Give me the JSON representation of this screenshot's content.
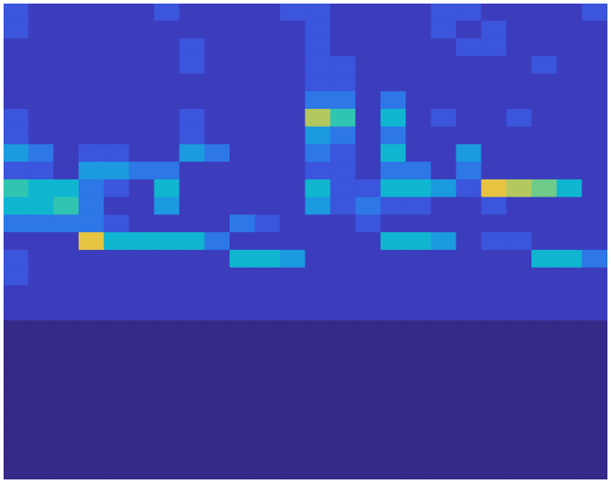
{
  "chart_data": {
    "type": "heatmap",
    "tick_labels": false,
    "xlim": [
      0,
      24
    ],
    "ylim": [
      0,
      27
    ],
    "zlim": [
      0,
      10
    ],
    "cells": [
      [
        2,
        1,
        1,
        1,
        1,
        1,
        2,
        1,
        1,
        1,
        1,
        2,
        2,
        1,
        1,
        1,
        1,
        2,
        2,
        1,
        1,
        1,
        1,
        2
      ],
      [
        2,
        1,
        1,
        1,
        1,
        1,
        1,
        1,
        1,
        1,
        1,
        1,
        2,
        1,
        1,
        1,
        1,
        2,
        1,
        2,
        1,
        1,
        1,
        1
      ],
      [
        1,
        1,
        1,
        1,
        1,
        1,
        1,
        2,
        1,
        1,
        1,
        1,
        2,
        1,
        1,
        1,
        1,
        1,
        2,
        2,
        1,
        1,
        1,
        1
      ],
      [
        1,
        1,
        1,
        1,
        1,
        1,
        1,
        2,
        1,
        1,
        1,
        1,
        2,
        2,
        1,
        1,
        1,
        1,
        1,
        1,
        1,
        2,
        1,
        1
      ],
      [
        1,
        1,
        1,
        1,
        1,
        1,
        1,
        1,
        1,
        1,
        1,
        1,
        2,
        2,
        1,
        1,
        1,
        1,
        1,
        1,
        1,
        1,
        1,
        1
      ],
      [
        1,
        1,
        1,
        1,
        1,
        1,
        1,
        1,
        1,
        1,
        1,
        1,
        3,
        3,
        1,
        3,
        1,
        1,
        1,
        1,
        1,
        1,
        1,
        1
      ],
      [
        2,
        1,
        1,
        1,
        1,
        1,
        1,
        2,
        1,
        1,
        1,
        1,
        8,
        6,
        1,
        5,
        1,
        2,
        1,
        1,
        2,
        1,
        1,
        1
      ],
      [
        2,
        1,
        1,
        1,
        1,
        1,
        1,
        2,
        1,
        1,
        1,
        1,
        4,
        3,
        1,
        3,
        1,
        1,
        1,
        1,
        1,
        1,
        1,
        1
      ],
      [
        4,
        3,
        1,
        2,
        2,
        1,
        1,
        4,
        3,
        1,
        1,
        1,
        3,
        2,
        1,
        5,
        1,
        1,
        4,
        1,
        1,
        1,
        1,
        1
      ],
      [
        2,
        2,
        1,
        4,
        4,
        3,
        3,
        1,
        1,
        1,
        1,
        1,
        2,
        2,
        1,
        3,
        3,
        1,
        3,
        1,
        1,
        1,
        1,
        1
      ],
      [
        6,
        5,
        5,
        3,
        2,
        1,
        5,
        1,
        1,
        1,
        1,
        1,
        5,
        2,
        2,
        5,
        5,
        4,
        2,
        9,
        8,
        7,
        5,
        1
      ],
      [
        5,
        5,
        6,
        3,
        1,
        1,
        4,
        1,
        1,
        1,
        1,
        1,
        4,
        2,
        3,
        2,
        2,
        1,
        1,
        2,
        1,
        1,
        1,
        1
      ],
      [
        3,
        3,
        3,
        3,
        2,
        1,
        1,
        1,
        1,
        3,
        2,
        1,
        1,
        1,
        2,
        1,
        1,
        1,
        1,
        1,
        1,
        1,
        1,
        1
      ],
      [
        1,
        1,
        1,
        9,
        5,
        5,
        5,
        5,
        3,
        1,
        1,
        1,
        1,
        1,
        1,
        5,
        5,
        4,
        1,
        2,
        2,
        1,
        1,
        1
      ],
      [
        2,
        1,
        1,
        1,
        1,
        1,
        1,
        1,
        1,
        5,
        5,
        4,
        1,
        1,
        1,
        1,
        1,
        1,
        1,
        1,
        1,
        5,
        5,
        3
      ],
      [
        2,
        1,
        1,
        1,
        1,
        1,
        1,
        1,
        1,
        1,
        1,
        1,
        1,
        1,
        1,
        1,
        1,
        1,
        1,
        1,
        1,
        1,
        1,
        1
      ],
      [
        1,
        1,
        1,
        1,
        1,
        1,
        1,
        1,
        1,
        1,
        1,
        1,
        1,
        1,
        1,
        1,
        1,
        1,
        1,
        1,
        1,
        1,
        1,
        1
      ],
      [
        1,
        1,
        1,
        1,
        1,
        1,
        1,
        1,
        1,
        1,
        1,
        1,
        1,
        1,
        1,
        1,
        1,
        1,
        1,
        1,
        1,
        1,
        1,
        1
      ],
      [
        0,
        0,
        0,
        0,
        0,
        0,
        0,
        0,
        0,
        0,
        0,
        0,
        0,
        0,
        0,
        0,
        0,
        0,
        0,
        0,
        0,
        0,
        0,
        0
      ],
      [
        0,
        0,
        0,
        0,
        0,
        0,
        0,
        0,
        0,
        0,
        0,
        0,
        0,
        0,
        0,
        0,
        0,
        0,
        0,
        0,
        0,
        0,
        0,
        0
      ],
      [
        0,
        0,
        0,
        0,
        0,
        0,
        0,
        0,
        0,
        0,
        0,
        0,
        0,
        0,
        0,
        0,
        0,
        0,
        0,
        0,
        0,
        0,
        0,
        0
      ],
      [
        0,
        0,
        0,
        0,
        0,
        0,
        0,
        0,
        0,
        0,
        0,
        0,
        0,
        0,
        0,
        0,
        0,
        0,
        0,
        0,
        0,
        0,
        0,
        0
      ],
      [
        0,
        0,
        0,
        0,
        0,
        0,
        0,
        0,
        0,
        0,
        0,
        0,
        0,
        0,
        0,
        0,
        0,
        0,
        0,
        0,
        0,
        0,
        0,
        0
      ],
      [
        0,
        0,
        0,
        0,
        0,
        0,
        0,
        0,
        0,
        0,
        0,
        0,
        0,
        0,
        0,
        0,
        0,
        0,
        0,
        0,
        0,
        0,
        0,
        0
      ],
      [
        0,
        0,
        0,
        0,
        0,
        0,
        0,
        0,
        0,
        0,
        0,
        0,
        0,
        0,
        0,
        0,
        0,
        0,
        0,
        0,
        0,
        0,
        0,
        0
      ],
      [
        0,
        0,
        0,
        0,
        0,
        0,
        0,
        0,
        0,
        0,
        0,
        0,
        0,
        0,
        0,
        0,
        0,
        0,
        0,
        0,
        0,
        0,
        0,
        0
      ],
      [
        0,
        0,
        0,
        0,
        0,
        0,
        0,
        0,
        0,
        0,
        0,
        0,
        0,
        0,
        0,
        0,
        0,
        0,
        0,
        0,
        0,
        0,
        0,
        0
      ]
    ]
  }
}
